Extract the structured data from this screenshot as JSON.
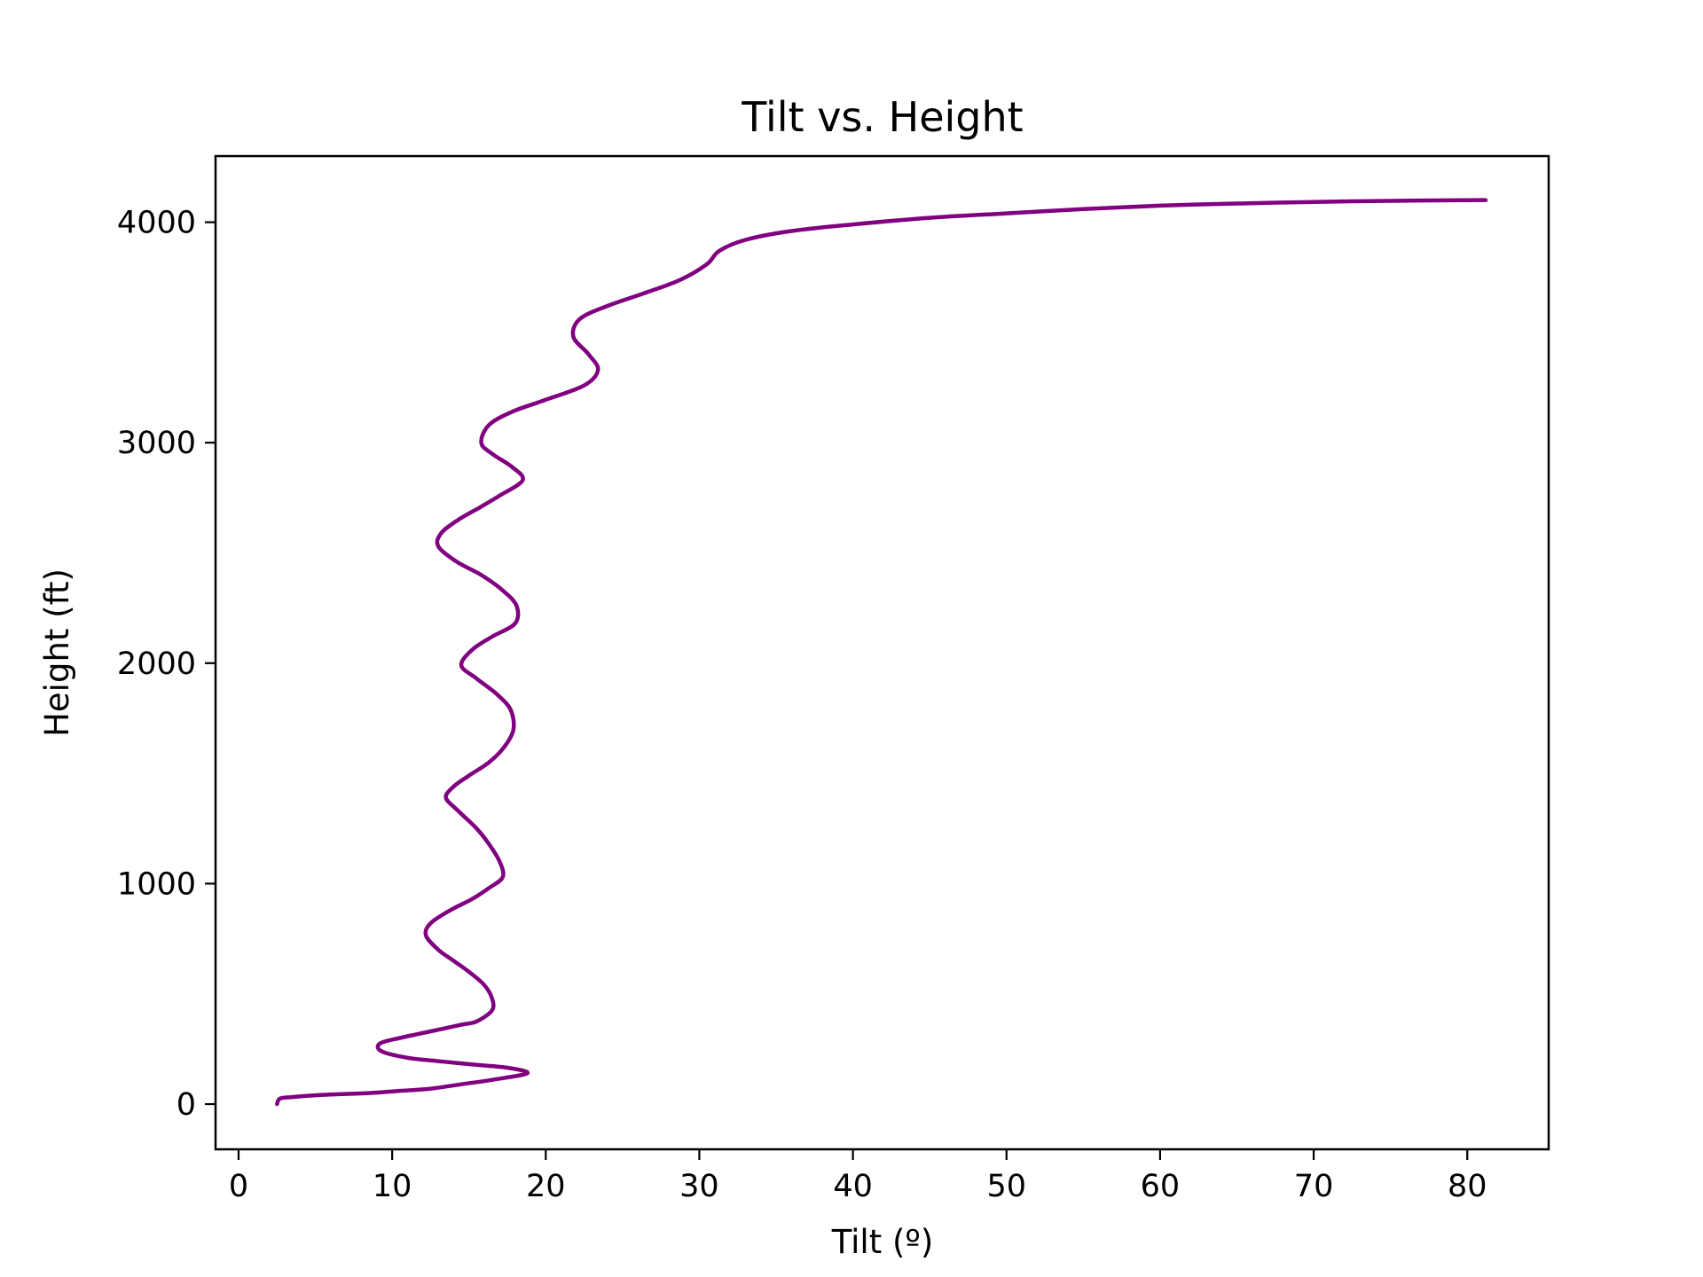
{
  "chart_data": {
    "type": "line",
    "title": "Tilt vs. Height",
    "xlabel": "Tilt (º)",
    "ylabel": "Height (ft)",
    "xlim": [
      -1.5,
      85.3
    ],
    "ylim": [
      -205,
      4300
    ],
    "xticks": [
      0,
      10,
      20,
      30,
      40,
      50,
      60,
      70,
      80
    ],
    "xtick_labels": [
      "0",
      "10",
      "20",
      "30",
      "40",
      "50",
      "60",
      "70",
      "80"
    ],
    "yticks": [
      0,
      1000,
      2000,
      3000,
      4000
    ],
    "ytick_labels": [
      "0",
      "1000",
      "2000",
      "3000",
      "4000"
    ],
    "grid": false,
    "legend": "none",
    "series": [
      {
        "color": "#800080",
        "points": [
          [
            2.5,
            0
          ],
          [
            2.7,
            25
          ],
          [
            3.5,
            32
          ],
          [
            5.5,
            42
          ],
          [
            8.5,
            50
          ],
          [
            10.5,
            60
          ],
          [
            12.5,
            70
          ],
          [
            14.5,
            90
          ],
          [
            16.5,
            110
          ],
          [
            18.8,
            140
          ],
          [
            17.5,
            165
          ],
          [
            15.5,
            178
          ],
          [
            13,
            195
          ],
          [
            11,
            210
          ],
          [
            9.3,
            240
          ],
          [
            9.2,
            275
          ],
          [
            10.5,
            300
          ],
          [
            12.5,
            330
          ],
          [
            14.5,
            360
          ],
          [
            15.5,
            375
          ],
          [
            16.5,
            425
          ],
          [
            16.5,
            480
          ],
          [
            16,
            540
          ],
          [
            15,
            600
          ],
          [
            14,
            650
          ],
          [
            13,
            700
          ],
          [
            12.2,
            765
          ],
          [
            12.5,
            820
          ],
          [
            13.8,
            880
          ],
          [
            15.2,
            930
          ],
          [
            16.3,
            980
          ],
          [
            17.2,
            1030
          ],
          [
            17,
            1100
          ],
          [
            16.3,
            1180
          ],
          [
            15.5,
            1250
          ],
          [
            14.3,
            1330
          ],
          [
            13.5,
            1390
          ],
          [
            14,
            1440
          ],
          [
            15,
            1490
          ],
          [
            16.3,
            1550
          ],
          [
            17.3,
            1620
          ],
          [
            17.9,
            1700
          ],
          [
            17.7,
            1790
          ],
          [
            16.8,
            1860
          ],
          [
            15.5,
            1930
          ],
          [
            14.5,
            1990
          ],
          [
            15.2,
            2060
          ],
          [
            16.5,
            2120
          ],
          [
            18,
            2180
          ],
          [
            18.1,
            2260
          ],
          [
            17.2,
            2330
          ],
          [
            15.8,
            2400
          ],
          [
            14.2,
            2460
          ],
          [
            13,
            2530
          ],
          [
            13.2,
            2590
          ],
          [
            14.3,
            2650
          ],
          [
            15.8,
            2710
          ],
          [
            17,
            2760
          ],
          [
            18.5,
            2830
          ],
          [
            17.8,
            2890
          ],
          [
            16.5,
            2950
          ],
          [
            15.8,
            3000
          ],
          [
            16.3,
            3080
          ],
          [
            17.8,
            3140
          ],
          [
            19.8,
            3190
          ],
          [
            22.5,
            3260
          ],
          [
            23.4,
            3330
          ],
          [
            22.8,
            3400
          ],
          [
            21.8,
            3480
          ],
          [
            22.2,
            3560
          ],
          [
            24,
            3620
          ],
          [
            26.5,
            3680
          ],
          [
            28.8,
            3740
          ],
          [
            30.5,
            3810
          ],
          [
            31.3,
            3870
          ],
          [
            33,
            3920
          ],
          [
            36,
            3960
          ],
          [
            40,
            3990
          ],
          [
            45,
            4020
          ],
          [
            50,
            4040
          ],
          [
            55,
            4060
          ],
          [
            60,
            4075
          ],
          [
            65,
            4085
          ],
          [
            70,
            4092
          ],
          [
            75,
            4097
          ],
          [
            80,
            4100
          ],
          [
            81.2,
            4100
          ]
        ]
      }
    ]
  }
}
